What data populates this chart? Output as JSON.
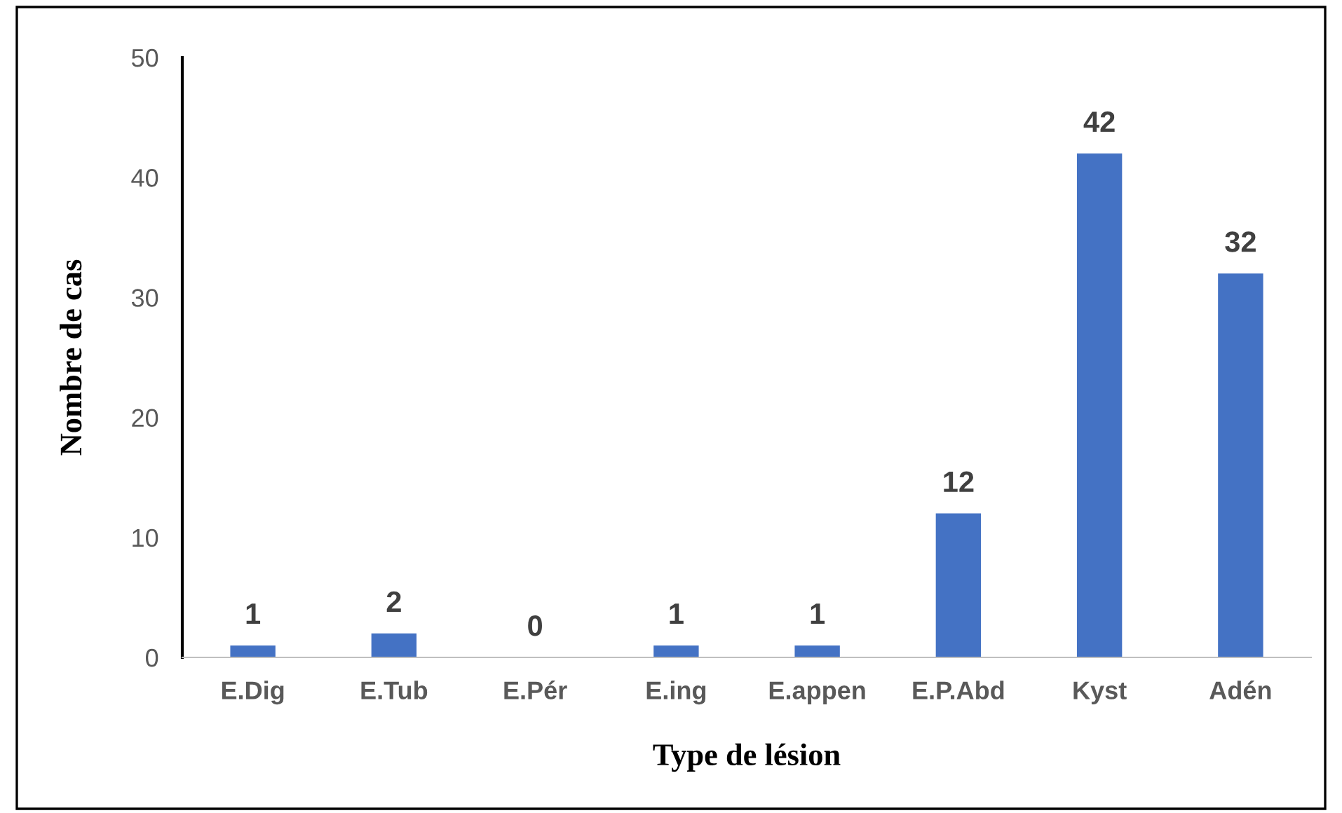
{
  "chart_data": {
    "type": "bar",
    "xlabel": "Type de lésion",
    "ylabel": "Nombre de cas",
    "categories": [
      "E.Dig",
      "E.Tub",
      "E.Pér",
      "E.ing",
      "E.appen",
      "E.P.Abd",
      "Kyst",
      "Adén"
    ],
    "values": [
      1,
      2,
      0,
      1,
      1,
      12,
      42,
      32
    ],
    "color": "#4472c4",
    "ylim": [
      0,
      50
    ],
    "yticks": [
      0,
      10,
      20,
      30,
      40,
      50
    ],
    "grid": false,
    "data_labels": true
  }
}
